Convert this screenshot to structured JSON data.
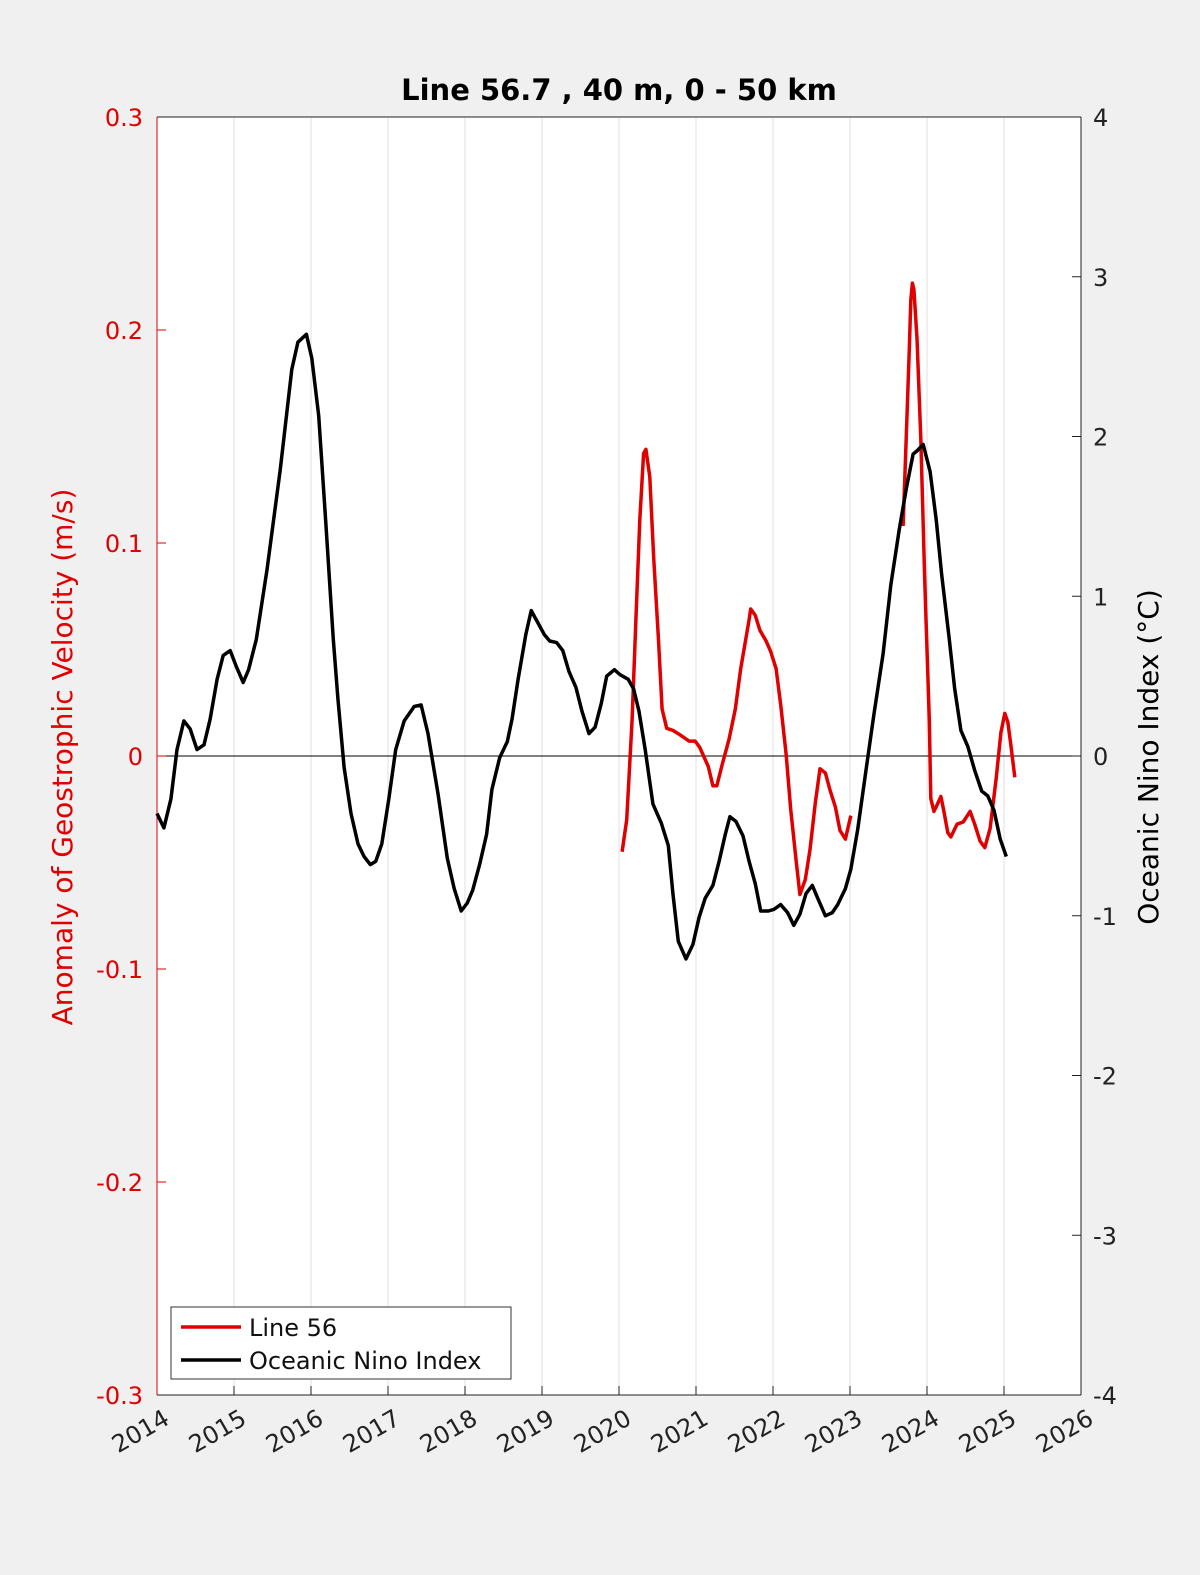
{
  "chart_data": {
    "type": "line",
    "title": "Line 56.7 , 40 m, 0 - 50 km",
    "ylabel": "Anomaly of Geostrophic Velocity (m/s)",
    "y2label": "Oceanic Nino Index (°C)",
    "xlim": [
      2014,
      2026
    ],
    "xticks": [
      2014,
      2015,
      2016,
      2017,
      2018,
      2019,
      2020,
      2021,
      2022,
      2023,
      2024,
      2025,
      2026
    ],
    "ylim": [
      -0.3,
      0.3
    ],
    "yticks": [
      -0.3,
      -0.2,
      -0.1,
      0,
      0.1,
      0.2,
      0.3
    ],
    "y2lim": [
      -4,
      4
    ],
    "y2ticks": [
      -4,
      -3,
      -2,
      -1,
      0,
      1,
      2,
      3,
      4
    ],
    "xgrid": true,
    "ycolor": "#e00000",
    "legend": "lower left",
    "series": [
      {
        "name": "Line 56",
        "color": "#e00000",
        "axis": "y",
        "x": [
          2020.04,
          2020.1,
          2020.17,
          2020.22,
          2020.27,
          2020.32,
          2020.35,
          2020.4,
          2020.45,
          2020.51,
          2020.56,
          2020.62,
          2020.7,
          2020.79,
          2020.91,
          2020.99,
          2021.05,
          2021.16,
          2021.22,
          2021.27,
          2021.34,
          2021.43,
          2021.51,
          2021.58,
          2021.69,
          2021.71,
          2021.77,
          2021.83,
          2021.91,
          2021.97,
          2022.04,
          2022.1,
          2022.17,
          2022.23,
          2022.3,
          2022.35,
          2022.42,
          2022.48,
          2022.55,
          2022.61,
          2022.68,
          2022.74,
          2022.81,
          2022.87,
          2022.94,
          2023.01,
          null,
          2023.69,
          2023.73,
          2023.77,
          2023.79,
          2023.81,
          2023.83,
          2023.87,
          2023.92,
          2023.97,
          2024.03,
          2024.05,
          2024.09,
          2024.13,
          2024.18,
          2024.22,
          2024.27,
          2024.31,
          2024.39,
          2024.47,
          2024.56,
          2024.62,
          2024.69,
          2024.75,
          2024.82,
          2024.9,
          2024.96,
          2025.01,
          2025.05,
          2025.09,
          2025.14
        ],
        "values": [
          -0.045,
          -0.03,
          0.017,
          0.064,
          0.111,
          0.142,
          0.144,
          0.131,
          0.093,
          0.056,
          0.022,
          0.013,
          0.012,
          0.01,
          0.007,
          0.007,
          0.004,
          -0.005,
          -0.014,
          -0.014,
          -0.004,
          0.008,
          0.022,
          0.041,
          0.064,
          0.069,
          0.066,
          0.059,
          0.054,
          0.049,
          0.041,
          0.024,
          0.001,
          -0.025,
          -0.049,
          -0.065,
          -0.058,
          -0.044,
          -0.022,
          -0.006,
          -0.008,
          -0.016,
          -0.024,
          -0.035,
          -0.039,
          -0.028,
          null,
          0.108,
          0.149,
          0.191,
          0.214,
          0.222,
          0.219,
          0.196,
          0.149,
          0.083,
          0.017,
          -0.02,
          -0.026,
          -0.023,
          -0.019,
          -0.026,
          -0.036,
          -0.038,
          -0.032,
          -0.031,
          -0.026,
          -0.032,
          -0.04,
          -0.043,
          -0.034,
          -0.01,
          0.011,
          0.02,
          0.016,
          0.005,
          -0.01
        ]
      },
      {
        "name": "Oceanic Nino Index",
        "color": "#000000",
        "axis": "y2",
        "x": [
          2014.0,
          2014.09,
          2014.18,
          2014.26,
          2014.35,
          2014.43,
          2014.52,
          2014.61,
          2014.69,
          2014.78,
          2014.86,
          2014.95,
          2015.03,
          2015.12,
          2015.19,
          2015.29,
          2015.43,
          2015.6,
          2015.75,
          2015.83,
          2015.94,
          2016.01,
          2016.1,
          2016.19,
          2016.29,
          2016.35,
          2016.43,
          2016.52,
          2016.61,
          2016.69,
          2016.77,
          2016.84,
          2016.92,
          2017.01,
          2017.1,
          2017.21,
          2017.34,
          2017.43,
          2017.52,
          2017.65,
          2017.77,
          2017.86,
          2017.95,
          2018.03,
          2018.1,
          2018.19,
          2018.28,
          2018.35,
          2018.45,
          2018.55,
          2018.61,
          2018.69,
          2018.79,
          2018.86,
          2018.95,
          2019.03,
          2019.1,
          2019.19,
          2019.27,
          2019.35,
          2019.44,
          2019.52,
          2019.61,
          2019.69,
          2019.77,
          2019.84,
          2019.94,
          2020.01,
          2020.12,
          2020.19,
          2020.26,
          2020.34,
          2020.44,
          2020.55,
          2020.64,
          2020.7,
          2020.77,
          2020.87,
          2020.96,
          2021.04,
          2021.12,
          2021.22,
          2021.3,
          2021.38,
          2021.44,
          2021.52,
          2021.61,
          2021.69,
          2021.77,
          2021.84,
          2021.94,
          2022.01,
          2022.1,
          2022.19,
          2022.27,
          2022.35,
          2022.43,
          2022.51,
          2022.58,
          2022.68,
          2022.77,
          2022.84,
          2022.94,
          2023.01,
          2023.1,
          2023.21,
          2023.31,
          2023.43,
          2023.53,
          2023.64,
          2023.73,
          2023.82,
          2023.87,
          2023.95,
          2024.04,
          2024.12,
          2024.19,
          2024.29,
          2024.36,
          2024.44,
          2024.53,
          2024.62,
          2024.71,
          2024.79,
          2024.87,
          2024.95,
          2025.03
        ],
        "values": [
          -0.36,
          -0.45,
          -0.27,
          0.04,
          0.22,
          0.17,
          0.04,
          0.07,
          0.23,
          0.48,
          0.63,
          0.66,
          0.56,
          0.46,
          0.54,
          0.73,
          1.17,
          1.79,
          2.42,
          2.59,
          2.64,
          2.49,
          2.13,
          1.48,
          0.73,
          0.36,
          -0.07,
          -0.36,
          -0.55,
          -0.63,
          -0.68,
          -0.66,
          -0.55,
          -0.27,
          0.04,
          0.22,
          0.31,
          0.32,
          0.14,
          -0.24,
          -0.64,
          -0.83,
          -0.97,
          -0.92,
          -0.84,
          -0.68,
          -0.49,
          -0.21,
          -0.01,
          0.09,
          0.23,
          0.48,
          0.76,
          0.91,
          0.83,
          0.76,
          0.72,
          0.71,
          0.66,
          0.53,
          0.43,
          0.28,
          0.14,
          0.18,
          0.33,
          0.5,
          0.54,
          0.51,
          0.48,
          0.42,
          0.28,
          0.04,
          -0.3,
          -0.42,
          -0.56,
          -0.86,
          -1.16,
          -1.27,
          -1.18,
          -1.01,
          -0.89,
          -0.81,
          -0.66,
          -0.49,
          -0.38,
          -0.41,
          -0.5,
          -0.66,
          -0.8,
          -0.97,
          -0.97,
          -0.96,
          -0.93,
          -0.98,
          -1.06,
          -0.99,
          -0.86,
          -0.81,
          -0.89,
          -1.0,
          -0.98,
          -0.93,
          -0.83,
          -0.71,
          -0.46,
          -0.08,
          0.26,
          0.64,
          1.07,
          1.42,
          1.67,
          1.89,
          1.91,
          1.95,
          1.78,
          1.48,
          1.14,
          0.73,
          0.42,
          0.16,
          0.06,
          -0.09,
          -0.22,
          -0.25,
          -0.34,
          -0.52,
          -0.63
        ]
      }
    ]
  }
}
